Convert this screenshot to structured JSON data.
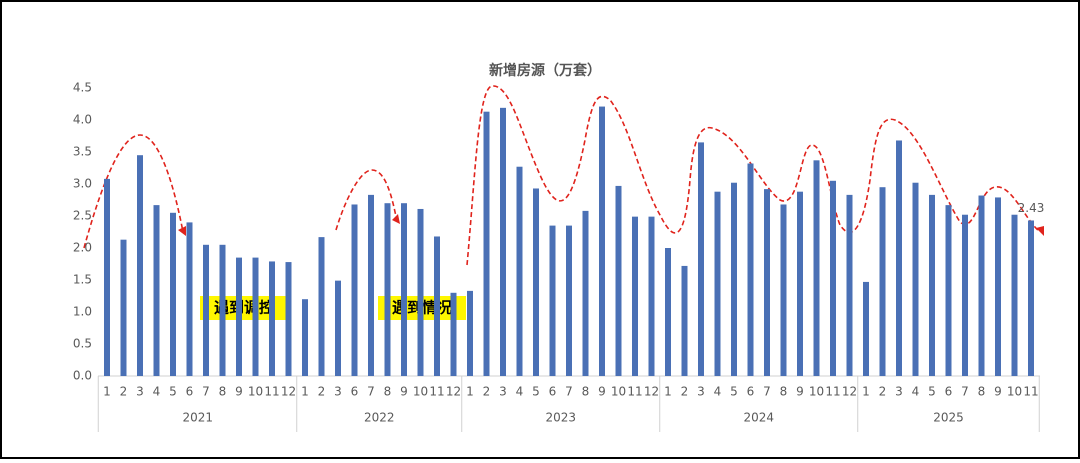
{
  "chart_data": {
    "type": "bar",
    "title": "新增房源（万套）",
    "color": "#4a70b5",
    "ylim": [
      0,
      4.5
    ],
    "yticks": [
      {
        "value": 0,
        "label": "0.0"
      },
      {
        "value": 0.5,
        "label": "0.5"
      },
      {
        "value": 1,
        "label": "1.0"
      },
      {
        "value": 1.5,
        "label": "1.5"
      },
      {
        "value": 2,
        "label": "2.0"
      },
      {
        "value": 2.5,
        "label": "2.5"
      },
      {
        "value": 3,
        "label": "3.0"
      },
      {
        "value": 3.5,
        "label": "3.5"
      },
      {
        "value": 4,
        "label": "4.0"
      },
      {
        "value": 4.5,
        "label": "4.5"
      }
    ],
    "groups": [
      {
        "name": "2021",
        "categories": [
          "1",
          "2",
          "3",
          "4",
          "5",
          "6",
          "7",
          "8",
          "9",
          "10",
          "11",
          "12"
        ],
        "values": [
          3.08,
          2.13,
          3.45,
          2.67,
          2.55,
          2.4,
          2.05,
          2.05,
          1.85,
          1.85,
          1.79,
          1.78
        ]
      },
      {
        "name": "2022",
        "categories": [
          "1",
          "2",
          "3",
          "6",
          "7",
          "8",
          "9",
          "10",
          "11",
          "12"
        ],
        "values": [
          1.2,
          2.17,
          1.49,
          2.68,
          2.83,
          2.7,
          2.7,
          2.61,
          2.18,
          1.3
        ]
      },
      {
        "name": "2023",
        "categories": [
          "1",
          "2",
          "3",
          "4",
          "5",
          "6",
          "7",
          "8",
          "9",
          "10",
          "11",
          "12"
        ],
        "values": [
          1.33,
          4.13,
          4.19,
          3.27,
          2.93,
          2.35,
          2.35,
          2.58,
          4.21,
          2.97,
          2.49,
          2.49
        ]
      },
      {
        "name": "2024",
        "categories": [
          "1",
          "2",
          "3",
          "4",
          "5",
          "6",
          "7",
          "8",
          "9",
          "10",
          "11",
          "12"
        ],
        "values": [
          2.0,
          1.72,
          3.65,
          2.88,
          3.02,
          3.32,
          2.92,
          2.68,
          2.88,
          3.37,
          3.05,
          2.83
        ]
      },
      {
        "name": "2025",
        "categories": [
          "1",
          "2",
          "3",
          "4",
          "5",
          "6",
          "7",
          "8",
          "9",
          "10",
          "11"
        ],
        "values": [
          1.47,
          2.95,
          3.68,
          3.02,
          2.83,
          2.67,
          2.52,
          2.82,
          2.79,
          2.52,
          2.43
        ]
      }
    ],
    "labeled_point": "chart_data.groups.4.values.10",
    "annotations": [
      "遇到调控",
      "遇到情况"
    ]
  }
}
